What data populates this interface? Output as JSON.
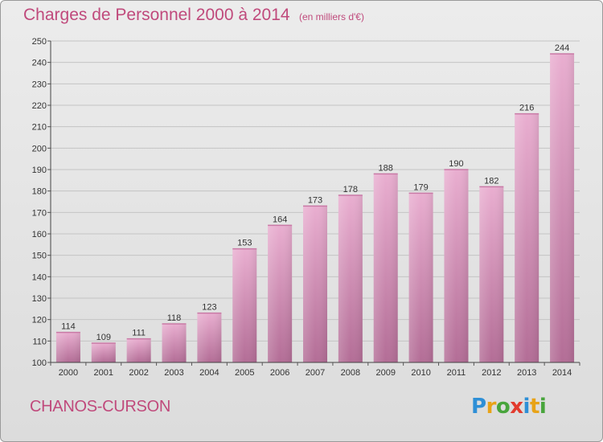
{
  "header": {
    "title": "Charges de Personnel 2000 à 2014",
    "unit": "(en milliers d'€)"
  },
  "footer": {
    "commune": "CHANOS-CURSON",
    "logo": {
      "text": "Proxiti",
      "letters": [
        {
          "ch": "P",
          "color": "#2e8fd6"
        },
        {
          "ch": "r",
          "color": "#e8a317"
        },
        {
          "ch": "o",
          "color": "#48a53c"
        },
        {
          "ch": "x",
          "color": "#e23b2e"
        },
        {
          "ch": "i",
          "color": "#2e8fd6"
        },
        {
          "ch": "t",
          "color": "#e8a317"
        },
        {
          "ch": "i",
          "color": "#48a53c"
        }
      ]
    }
  },
  "chart_data": {
    "type": "bar",
    "title": "Charges de Personnel 2000 à 2014",
    "subtitle": "(en milliers d'€)",
    "xlabel": "",
    "ylabel": "",
    "categories": [
      "2000",
      "2001",
      "2002",
      "2003",
      "2004",
      "2005",
      "2006",
      "2007",
      "2008",
      "2009",
      "2010",
      "2011",
      "2012",
      "2013",
      "2014"
    ],
    "values": [
      114,
      109,
      111,
      118,
      123,
      153,
      164,
      173,
      178,
      188,
      179,
      190,
      182,
      216,
      244
    ],
    "ylim": [
      100,
      250
    ],
    "yticks": [
      100,
      110,
      120,
      130,
      140,
      150,
      160,
      170,
      180,
      190,
      200,
      210,
      220,
      230,
      240,
      250
    ],
    "grid": true,
    "bar_color": "#d98ab6",
    "bar_color_light": "#e6a8cb",
    "bar_color_dark": "#b86a96"
  }
}
